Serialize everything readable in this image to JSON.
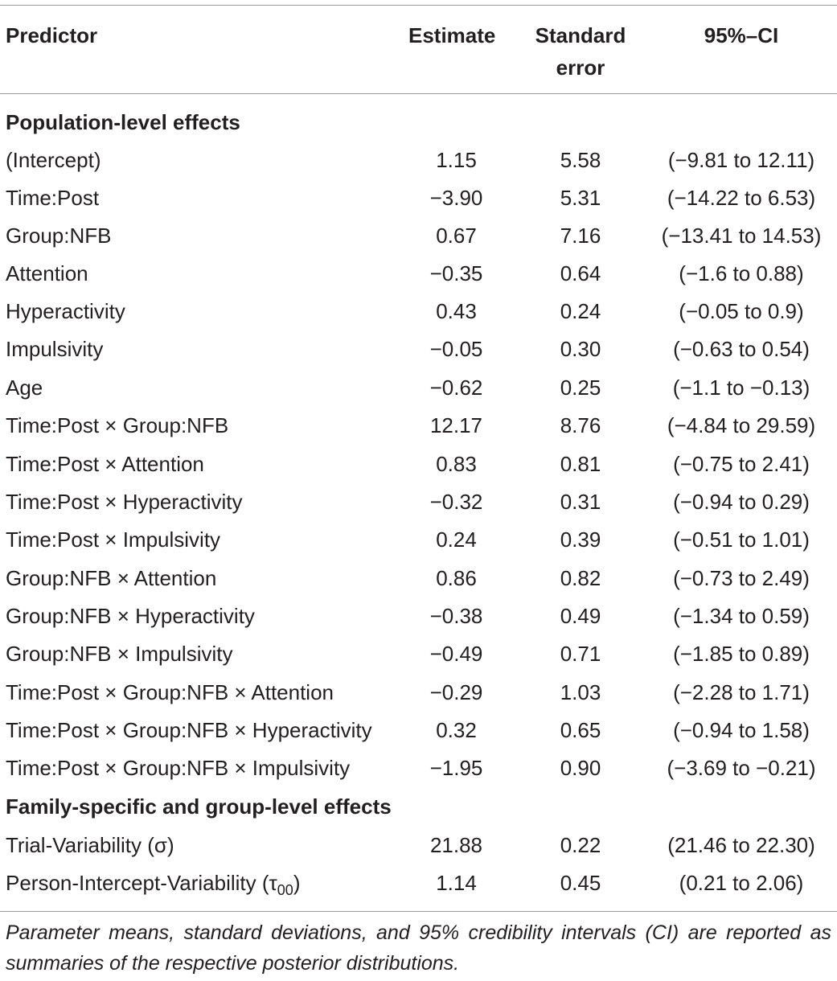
{
  "header": {
    "predictor": "Predictor",
    "estimate": "Estimate",
    "std_error_line1": "Standard",
    "std_error_line2": "error",
    "ci": "95%–CI"
  },
  "sections": {
    "population": "Population-level effects",
    "family": "Family-specific and group-level effects"
  },
  "rows": [
    {
      "predictor": "(Intercept)",
      "estimate": "1.15",
      "se": "5.58",
      "ci": "(−9.81 to 12.11)"
    },
    {
      "predictor": "Time:Post",
      "estimate": "−3.90",
      "se": "5.31",
      "ci": "(−14.22 to 6.53)"
    },
    {
      "predictor": "Group:NFB",
      "estimate": "0.67",
      "se": "7.16",
      "ci": "(−13.41 to 14.53)"
    },
    {
      "predictor": "Attention",
      "estimate": "−0.35",
      "se": "0.64",
      "ci": "(−1.6 to 0.88)"
    },
    {
      "predictor": "Hyperactivity",
      "estimate": "0.43",
      "se": "0.24",
      "ci": "(−0.05 to 0.9)"
    },
    {
      "predictor": "Impulsivity",
      "estimate": "−0.05",
      "se": "0.30",
      "ci": "(−0.63 to 0.54)"
    },
    {
      "predictor": "Age",
      "estimate": "−0.62",
      "se": "0.25",
      "ci": "(−1.1 to −0.13)"
    },
    {
      "predictor": "Time:Post × Group:NFB",
      "estimate": "12.17",
      "se": "8.76",
      "ci": "(−4.84 to 29.59)"
    },
    {
      "predictor": "Time:Post × Attention",
      "estimate": "0.83",
      "se": "0.81",
      "ci": "(−0.75 to 2.41)"
    },
    {
      "predictor": "Time:Post × Hyperactivity",
      "estimate": "−0.32",
      "se": "0.31",
      "ci": "(−0.94 to 0.29)"
    },
    {
      "predictor": "Time:Post × Impulsivity",
      "estimate": "0.24",
      "se": "0.39",
      "ci": "(−0.51 to 1.01)"
    },
    {
      "predictor": "Group:NFB × Attention",
      "estimate": "0.86",
      "se": "0.82",
      "ci": "(−0.73 to 2.49)"
    },
    {
      "predictor": "Group:NFB × Hyperactivity",
      "estimate": "−0.38",
      "se": "0.49",
      "ci": "(−1.34 to 0.59)"
    },
    {
      "predictor": "Group:NFB × Impulsivity",
      "estimate": "−0.49",
      "se": "0.71",
      "ci": "(−1.85 to 0.89)"
    },
    {
      "predictor": "Time:Post × Group:NFB × Attention",
      "estimate": "−0.29",
      "se": "1.03",
      "ci": "(−2.28 to 1.71)"
    },
    {
      "predictor": "Time:Post × Group:NFB × Hyperactivity",
      "estimate": "0.32",
      "se": "0.65",
      "ci": "(−0.94 to 1.58)"
    },
    {
      "predictor": "Time:Post × Group:NFB × Impulsivity",
      "estimate": "−1.95",
      "se": "0.90",
      "ci": "(−3.69 to −0.21)"
    },
    {
      "predictor": "Trial-Variability (σ)",
      "estimate": "21.88",
      "se": "0.22",
      "ci": "(21.46 to 22.30)"
    },
    {
      "predictor_main": "Person-Intercept-Variability (τ",
      "predictor_sub": "00",
      "predictor_end": ")",
      "estimate": "1.14",
      "se": "0.45",
      "ci": "(0.21 to 2.06)"
    }
  ],
  "footnote": "Parameter means, standard deviations, and 95% credibility intervals (CI) are reported as summaries of the respective posterior distributions."
}
